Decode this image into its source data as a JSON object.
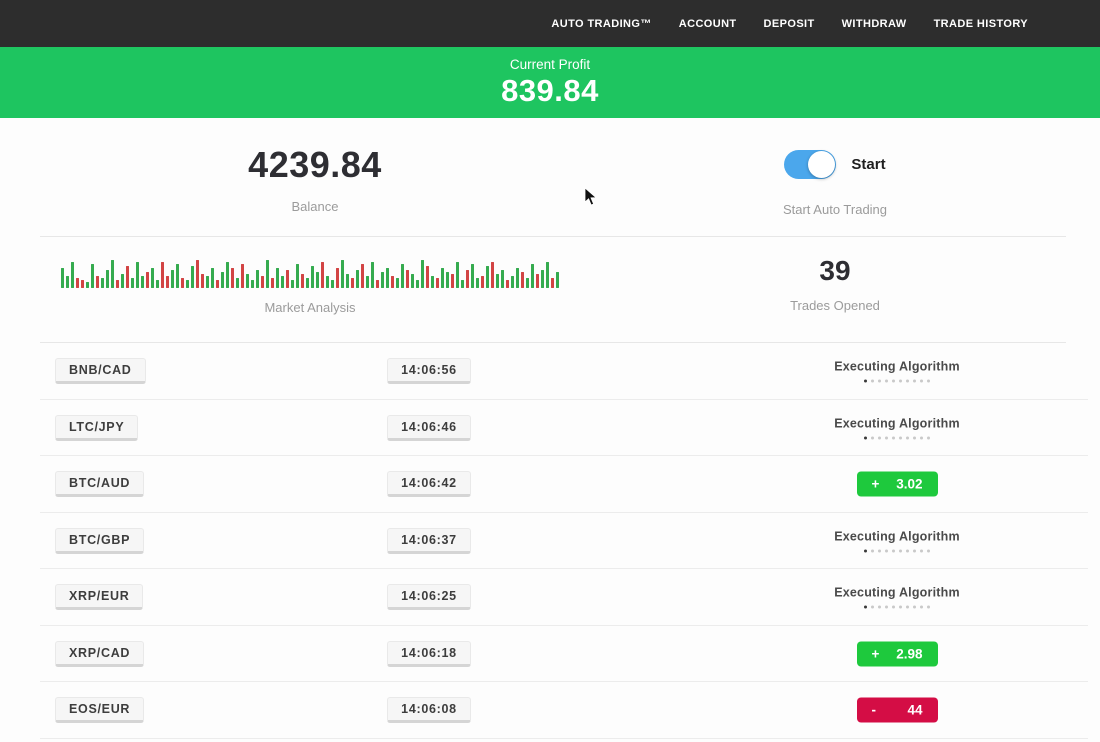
{
  "nav": {
    "items": [
      "AUTO TRADING™",
      "ACCOUNT",
      "DEPOSIT",
      "WITHDRAW",
      "TRADE HISTORY"
    ]
  },
  "banner": {
    "label": "Current Profit",
    "value": "839.84"
  },
  "stats": {
    "balance": {
      "value": "4239.84",
      "label": "Balance"
    },
    "auto_trading": {
      "toggle_label": "Start",
      "label": "Start Auto Trading",
      "toggle_on": true
    },
    "market": {
      "label": "Market Analysis",
      "bars": "g20 g12 g26 r10 r8 g6 g24 r12 g10 g18 g28 r8 g14 r22 g10 g26 g12 r16 g20 g8 r26 r12 g18 g24 r10 g8 g22 r28 r14 g12 g20 r8 g16 g26 r20 g10 r24 g14 g8 g18 r12 g28 r10 g20 g12 r18 g8 g24 r14 g10 g22 g16 r26 g12 g8 r20 g28 g14 r10 g18 r24 g12 g26 r8 g16 g20 r12 g10 g24 r18 g14 g8 g28 r22 g12 r10 g20 g16 r14 g26 g8 r18 g24 g10 r12 g22 r26 g14 g18 r8 g12 g20 r16 g10 g24 r14 g18 g26 r10 g16"
    },
    "trades": {
      "value": "39",
      "label": "Trades Opened"
    }
  },
  "table": {
    "executing_dots": {
      "count": 10,
      "active_index": 0
    },
    "rows": [
      {
        "pair": "BNB/CAD",
        "time": "14:06:56",
        "status": {
          "type": "executing",
          "label": "Executing Algorithm"
        }
      },
      {
        "pair": "LTC/JPY",
        "time": "14:06:46",
        "status": {
          "type": "executing",
          "label": "Executing Algorithm"
        }
      },
      {
        "pair": "BTC/AUD",
        "time": "14:06:42",
        "status": {
          "type": "profit",
          "sign": "+",
          "amount": "3.02"
        }
      },
      {
        "pair": "BTC/GBP",
        "time": "14:06:37",
        "status": {
          "type": "executing",
          "label": "Executing Algorithm"
        }
      },
      {
        "pair": "XRP/EUR",
        "time": "14:06:25",
        "status": {
          "type": "executing",
          "label": "Executing Algorithm"
        }
      },
      {
        "pair": "XRP/CAD",
        "time": "14:06:18",
        "status": {
          "type": "profit",
          "sign": "+",
          "amount": "2.98"
        }
      },
      {
        "pair": "EOS/EUR",
        "time": "14:06:08",
        "status": {
          "type": "loss",
          "sign": "-",
          "amount": "44"
        }
      }
    ]
  },
  "colors": {
    "nav_bg": "#2d2d2d",
    "banner_green": "#1ec560",
    "profit_green": "#1ec93d",
    "loss_red": "#d40d45",
    "toggle_blue": "#4ba7ec",
    "bar_green": "#35ab4f",
    "bar_red": "#d24444"
  }
}
